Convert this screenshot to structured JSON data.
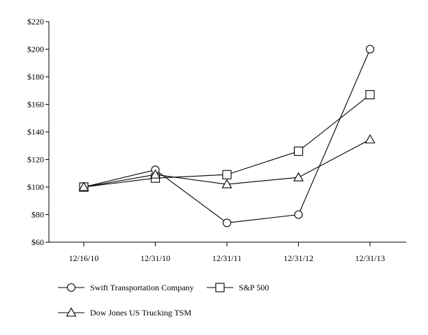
{
  "chart_data": {
    "type": "line",
    "title": "",
    "xlabel": "",
    "ylabel": "",
    "categories": [
      "12/16/10",
      "12/31/10",
      "12/31/11",
      "12/31/12",
      "12/31/13"
    ],
    "ylim": [
      60,
      220
    ],
    "yticks": [
      60,
      80,
      100,
      120,
      140,
      160,
      180,
      200,
      220
    ],
    "ytick_labels": [
      "$60",
      "$80",
      "$100",
      "$120",
      "$140",
      "$160",
      "$180",
      "$200",
      "$220"
    ],
    "grid": false,
    "legend_position": "bottom",
    "series": [
      {
        "name": "Swift Transportation Company",
        "marker": "circle",
        "values": [
          100,
          112.5,
          74,
          80,
          200
        ]
      },
      {
        "name": "S&P 500",
        "marker": "square",
        "values": [
          100,
          106.5,
          109,
          126,
          167
        ]
      },
      {
        "name": "Dow Jones US Trucking TSM",
        "marker": "triangle",
        "values": [
          100,
          109,
          102,
          107,
          134.5
        ]
      }
    ],
    "line_color": "#000000"
  }
}
